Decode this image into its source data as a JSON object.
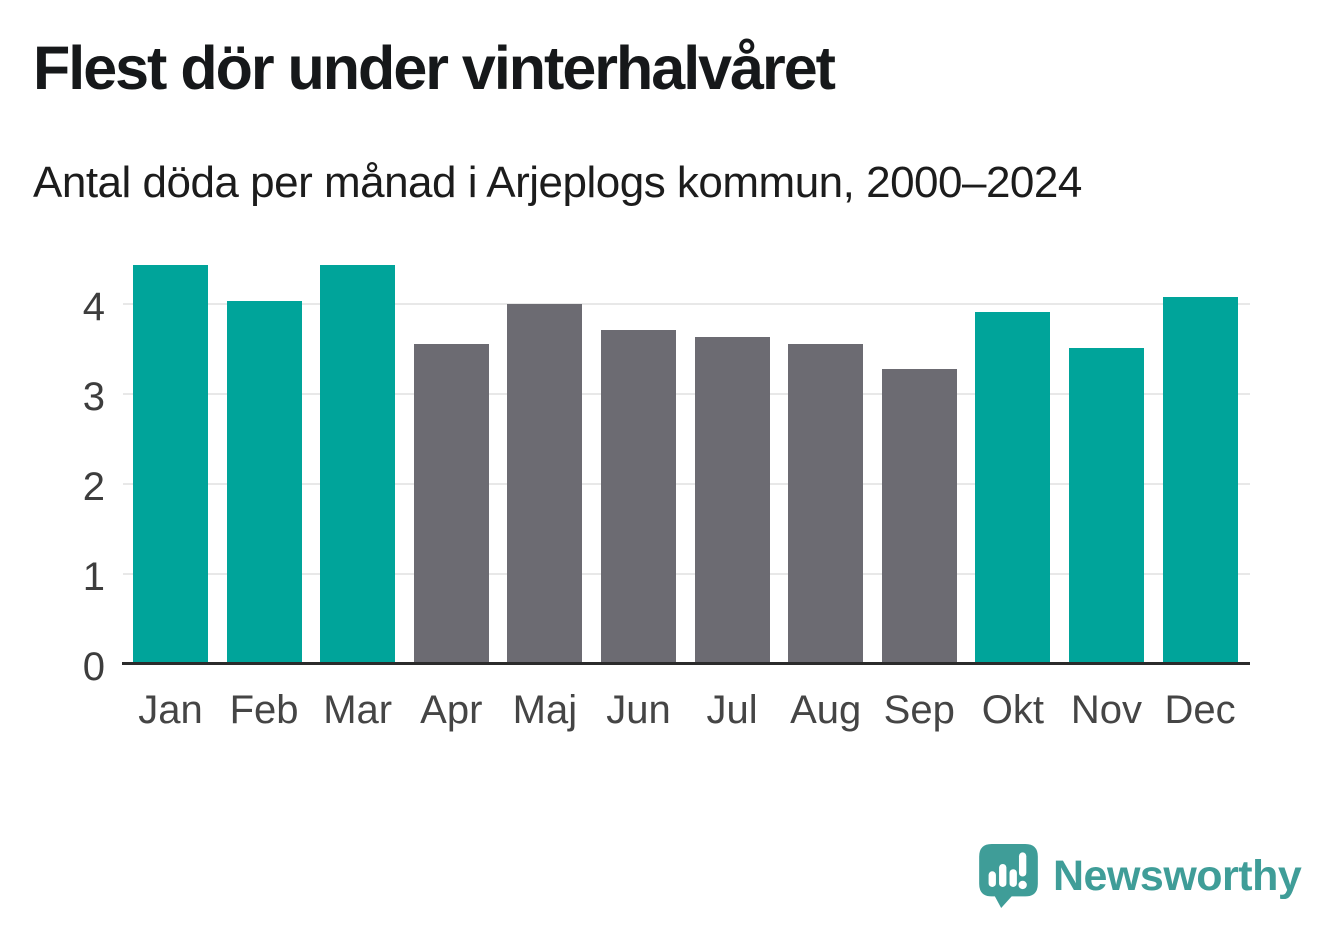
{
  "title": "Flest dör under vinterhalvåret",
  "subtitle": "Antal döda per månad i Arjeplogs kommun, 2000–2024",
  "colors": {
    "teal": "#00a49a",
    "gray": "#6c6b72",
    "gridline": "#e8e8e8",
    "axis_line": "#2b2b2b",
    "title_text": "#16181a",
    "tick_text": "#3d3d3d",
    "month_text": "#454545",
    "logo_teal": "#3f9d98"
  },
  "chart_data": {
    "type": "bar",
    "title": "Flest dör under vinterhalvåret",
    "subtitle": "Antal döda per månad i Arjeplogs kommun, 2000–2024",
    "categories": [
      "Jan",
      "Feb",
      "Mar",
      "Apr",
      "Maj",
      "Jun",
      "Jul",
      "Aug",
      "Sep",
      "Okt",
      "Nov",
      "Dec"
    ],
    "values": [
      4.44,
      4.04,
      4.44,
      3.56,
      4.0,
      3.72,
      3.64,
      3.56,
      3.28,
      3.92,
      3.52,
      4.08
    ],
    "bar_color_keys": [
      "teal",
      "teal",
      "teal",
      "gray",
      "gray",
      "gray",
      "gray",
      "gray",
      "gray",
      "teal",
      "teal",
      "teal"
    ],
    "xlabel": "",
    "ylabel": "",
    "ylim": [
      0,
      4.55
    ],
    "yticks": [
      0,
      1,
      2,
      3,
      4
    ],
    "grid": true,
    "legend": false,
    "highlight_meaning": "teal = winter half-year months, gray = summer half-year months"
  },
  "branding": {
    "logo_text": "Newsworthy",
    "logo_icon": "newsworthy-speech-bubble-bar-chart-icon"
  }
}
